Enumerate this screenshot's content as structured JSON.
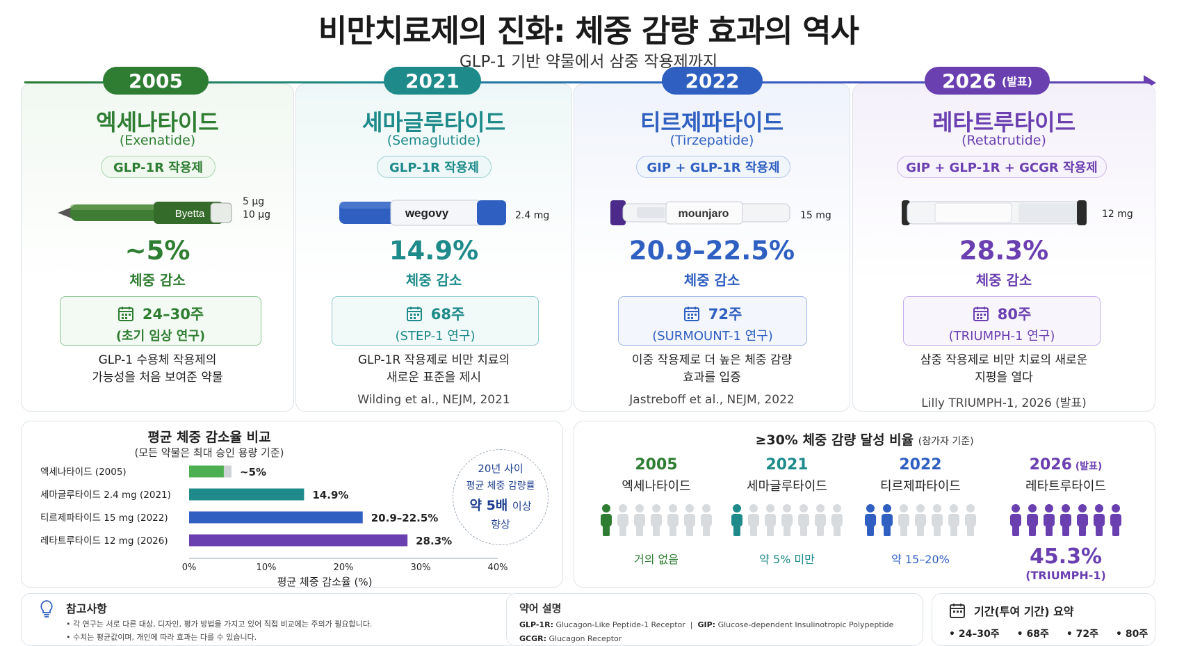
{
  "header": {
    "title": "비만치료제의 진화: 체중 감량 효과의 역사",
    "subtitle": "GLP-1 기반 약물에서 삼중 작용제까지"
  },
  "colors": {
    "green": "#2e7d32",
    "teal": "#1e8a8a",
    "blue": "#2f5fc0",
    "purple": "#6a3fb0"
  },
  "drugs": [
    {
      "year": "2005",
      "tag": "",
      "name": "엑세나타이드",
      "en": "(Exenatide)",
      "mechanism": "GLP-1R 작용제",
      "pen_label": "Byetta",
      "dose": [
        "5 μg",
        "10 μg"
      ],
      "pct": "~5%",
      "pct_label": "체중 감소",
      "weeks": "24–30주",
      "study": "(초기 임상 연구)",
      "desc": [
        "GLP-1 수용체 작용제의",
        "가능성을 처음 보여준 약물"
      ],
      "cite": "",
      "pen_icon": "green-injector-pen-icon"
    },
    {
      "year": "2021",
      "tag": "",
      "name": "세마글루타이드",
      "en": "(Semaglutide)",
      "mechanism": "GLP-1R 작용제",
      "pen_label": "wegovy",
      "dose": [
        "2.4 mg"
      ],
      "pct": "14.9%",
      "pct_label": "체중 감소",
      "weeks": "68주",
      "study": "(STEP-1 연구)",
      "desc": [
        "GLP-1R 작용제로 비만 치료의",
        "새로운 표준을 제시"
      ],
      "cite": "Wilding et al., NEJM, 2021",
      "pen_icon": "blue-injector-pen-icon"
    },
    {
      "year": "2022",
      "tag": "",
      "name": "티르제파타이드",
      "en": "(Tirzepatide)",
      "mechanism": "GIP + GLP-1R 작용제",
      "pen_label": "mounjaro",
      "dose": [
        "15 mg"
      ],
      "pct": "20.9–22.5%",
      "pct_label": "체중 감소",
      "weeks": "72주",
      "study": "(SURMOUNT-1 연구)",
      "desc": [
        "이중 작용제로 더 높은 체중 감량",
        "효과를 입증"
      ],
      "cite": "Jastreboff et al., NEJM, 2022",
      "pen_icon": "white-purple-injector-pen-icon"
    },
    {
      "year": "2026",
      "tag": "(발표)",
      "name": "레타트루타이드",
      "en": "(Retatrutide)",
      "mechanism": "GIP + GLP-1R + GCGR 작용제",
      "pen_label": "",
      "dose": [
        "12 mg"
      ],
      "pct": "28.3%",
      "pct_label": "체중 감소",
      "weeks": "80주",
      "study": "(TRIUMPH-1 연구)",
      "desc": [
        "삼중 작용제로 비만 치료의 새로운",
        "지평을 열다"
      ],
      "cite": "Lilly TRIUMPH-1, 2026 (발표)",
      "pen_icon": "white-injector-pen-icon"
    }
  ],
  "chart_data": [
    {
      "type": "bar",
      "orientation": "horizontal",
      "title": "평균 체중 감소율 비교",
      "subtitle": "(모든 약물은 최대 승인 용량 기준)",
      "categories": [
        "엑세나타이드 (2005)",
        "세마글루타이드 2.4 mg (2021)",
        "티르제파타이드 15 mg (2022)",
        "레타트루타이드 12 mg (2026)"
      ],
      "values": [
        5,
        14.9,
        21.7,
        28.3
      ],
      "ranges": [
        [
          4.5,
          5.5
        ],
        null,
        [
          20.9,
          22.5
        ],
        null
      ],
      "value_labels": [
        "~5%",
        "14.9%",
        "20.9–22.5%",
        "28.3%"
      ],
      "xlabel": "평균 체중 감소율 (%)",
      "xlim": [
        0,
        40
      ],
      "xticks": [
        "0%",
        "10%",
        "20%",
        "30%",
        "40%"
      ],
      "grid": false,
      "colors": [
        "#4caf50",
        "#1e8a8a",
        "#2f5fc0",
        "#6a3fb0"
      ],
      "callout": {
        "l1": "20년 사이",
        "l2": "평균 체중 감량률",
        "l3a": "약 5배",
        "l3b": "이상",
        "l4": "향상"
      }
    },
    {
      "type": "pictogram",
      "title": "≥30% 체중 감량 달성 비율",
      "title_note": "(참가자 기준)",
      "groups": [
        {
          "year": "2005",
          "tag": "",
          "name": "엑세나타이드",
          "filled_people": 1,
          "value_label": "거의 없음",
          "sub": "",
          "color": "#2e7d32"
        },
        {
          "year": "2021",
          "tag": "",
          "name": "세마글루타이드",
          "filled_people": 1,
          "value_label": "약 5% 미만",
          "sub": "",
          "color": "#1e8a8a"
        },
        {
          "year": "2022",
          "tag": "",
          "name": "티르제파타이드",
          "filled_people": 2,
          "value_label": "약 15–20%",
          "sub": "",
          "color": "#2f5fc0"
        },
        {
          "year": "2026",
          "tag": "(발표)",
          "name": "레타트루타이드",
          "filled_people": 7,
          "value_label": "45.3%",
          "sub": "(TRIUMPH-1)",
          "color": "#6a3fb0"
        }
      ],
      "people_per_group": 7
    }
  ],
  "notes": {
    "title": "참고사항",
    "lines": [
      "• 각 연구는 서로 다른 대상, 디자인, 평가 방법을 가지고 있어 직접 비교에는 주의가 필요합니다.",
      "• 수치는 평균값이며, 개인에 따라 효과는 다를 수 있습니다."
    ],
    "icon": "lightbulb-icon"
  },
  "abbr": {
    "title": "약어 설명",
    "glp1r_key": "GLP-1R:",
    "glp1r_val": "Glucagon-Like Peptide-1 Receptor",
    "sep": "|",
    "gip_key": "GIP:",
    "gip_val": "Glucose-dependent Insulinotropic Polypeptide",
    "gcgr_key": "GCGR:",
    "gcgr_val": "Glucagon Receptor"
  },
  "duration": {
    "title": "기간(투여 기간) 요약",
    "items": [
      "• 24–30주",
      "• 68주",
      "• 72주",
      "• 80주"
    ],
    "icon": "calendar-icon"
  }
}
